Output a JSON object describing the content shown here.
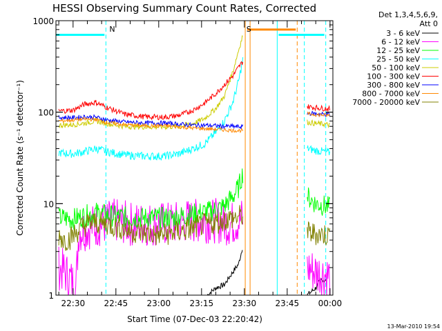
{
  "chart_data": {
    "type": "line",
    "title": "HESSI Observing Summary Count Rates, Corrected",
    "xlabel": "Start Time (07-Dec-03 22:20:42)",
    "ylabel": "Corrected Count Rate (s⁻¹ detector⁻¹)",
    "y_scale": "log",
    "ylim": [
      1,
      1000
    ],
    "y_ticks": [
      {
        "value": 1,
        "label": "1"
      },
      {
        "value": 10,
        "label": "10"
      },
      {
        "value": 100,
        "label": "100"
      },
      {
        "value": 1000,
        "label": "1000"
      }
    ],
    "xlim_minutes_after_2220": [
      4,
      101
    ],
    "x_ticks": [
      {
        "minute": 10,
        "label": "22:30"
      },
      {
        "minute": 25,
        "label": "22:45"
      },
      {
        "minute": 40,
        "label": "23:00"
      },
      {
        "minute": 55,
        "label": "23:15"
      },
      {
        "minute": 70,
        "label": "23:30"
      },
      {
        "minute": 85,
        "label": "23:45"
      },
      {
        "minute": 100,
        "label": "00:00"
      }
    ],
    "legend_header": [
      "Det 1,3,4,5,6,9,",
      "Att 0"
    ],
    "legend_placement": "right",
    "series": [
      {
        "name": "3 - 6 keV",
        "color": "#000000",
        "segments": [
          [
            [
              57,
              1
            ],
            [
              60,
              1.2
            ],
            [
              63,
              1.3
            ],
            [
              66,
              1.8
            ],
            [
              68,
              2.2
            ],
            [
              69.5,
              3.5
            ]
          ],
          [
            [
              92,
              1
            ],
            [
              95,
              1.2
            ],
            [
              97,
              1.5
            ],
            [
              99,
              1.4
            ]
          ]
        ]
      },
      {
        "name": "6 - 12 keV",
        "color": "#ff00ff",
        "segments": [
          [
            [
              5,
              2
            ],
            [
              7,
              1.8
            ],
            [
              9,
              1.5
            ],
            [
              11,
              1.2
            ],
            [
              12,
              5
            ],
            [
              15,
              5.5
            ],
            [
              20,
              6
            ],
            [
              25,
              6.5
            ],
            [
              30,
              6
            ],
            [
              35,
              6
            ],
            [
              40,
              6
            ],
            [
              45,
              6
            ],
            [
              50,
              6.5
            ],
            [
              55,
              6.5
            ],
            [
              60,
              6.5
            ],
            [
              65,
              6
            ],
            [
              68,
              6.5
            ],
            [
              69.5,
              7
            ]
          ],
          [
            [
              92,
              2
            ],
            [
              95,
              1.8
            ],
            [
              98,
              1.7
            ],
            [
              100,
              1.6
            ]
          ]
        ]
      },
      {
        "name": "12 - 25 keV",
        "color": "#00ff00",
        "segments": [
          [
            [
              5,
              7
            ],
            [
              10,
              6.8
            ],
            [
              15,
              7.5
            ],
            [
              18,
              8
            ],
            [
              22,
              7.5
            ],
            [
              30,
              7
            ],
            [
              40,
              7
            ],
            [
              45,
              7
            ],
            [
              50,
              7.5
            ],
            [
              55,
              8
            ],
            [
              60,
              8.5
            ],
            [
              63,
              9.5
            ],
            [
              66,
              12
            ],
            [
              68,
              15
            ],
            [
              69.5,
              22
            ]
          ],
          [
            [
              92,
              12
            ],
            [
              95,
              10
            ],
            [
              98,
              9.5
            ],
            [
              100,
              9
            ]
          ]
        ]
      },
      {
        "name": "25 - 50 keV",
        "color": "#00ffff",
        "segments": [
          [
            [
              5,
              36
            ],
            [
              10,
              35
            ],
            [
              14,
              37
            ],
            [
              18,
              40
            ],
            [
              22,
              37
            ],
            [
              28,
              34
            ],
            [
              35,
              33
            ],
            [
              42,
              33
            ],
            [
              47,
              35
            ],
            [
              52,
              40
            ],
            [
              56,
              45
            ],
            [
              60,
              60
            ],
            [
              63,
              80
            ],
            [
              66,
              130
            ],
            [
              68,
              220
            ],
            [
              69.5,
              380
            ]
          ],
          [
            [
              92,
              40
            ],
            [
              95,
              38
            ],
            [
              98,
              37
            ],
            [
              100,
              36
            ]
          ]
        ]
      },
      {
        "name": "50 - 100 keV",
        "color": "#cccc00",
        "segments": [
          [
            [
              5,
              72
            ],
            [
              10,
              73
            ],
            [
              14,
              76
            ],
            [
              18,
              80
            ],
            [
              22,
              75
            ],
            [
              28,
              70
            ],
            [
              35,
              69
            ],
            [
              42,
              69
            ],
            [
              47,
              70
            ],
            [
              52,
              75
            ],
            [
              56,
              85
            ],
            [
              60,
              110
            ],
            [
              63,
              150
            ],
            [
              66,
              280
            ],
            [
              68,
              480
            ],
            [
              69.5,
              700
            ]
          ],
          [
            [
              92,
              78
            ],
            [
              95,
              75
            ],
            [
              98,
              74
            ],
            [
              100,
              72
            ]
          ]
        ]
      },
      {
        "name": "100 - 300 keV",
        "color": "#ff0000",
        "segments": [
          [
            [
              5,
              103
            ],
            [
              10,
              105
            ],
            [
              14,
              122
            ],
            [
              18,
              128
            ],
            [
              22,
              112
            ],
            [
              28,
              95
            ],
            [
              35,
              89
            ],
            [
              42,
              88
            ],
            [
              47,
              92
            ],
            [
              52,
              105
            ],
            [
              56,
              125
            ],
            [
              60,
              160
            ],
            [
              63,
              200
            ],
            [
              66,
              250
            ],
            [
              68,
              310
            ],
            [
              69.5,
              360
            ]
          ],
          [
            [
              92,
              115
            ],
            [
              95,
              112
            ],
            [
              98,
              110
            ],
            [
              100,
              108
            ]
          ]
        ]
      },
      {
        "name": "300 - 800 keV",
        "color": "#0000ff",
        "segments": [
          [
            [
              5,
              88
            ],
            [
              10,
              87
            ],
            [
              14,
              89
            ],
            [
              18,
              88
            ],
            [
              22,
              82
            ],
            [
              28,
              78
            ],
            [
              35,
              76
            ],
            [
              42,
              76
            ],
            [
              47,
              74
            ],
            [
              52,
              72
            ],
            [
              56,
              72
            ],
            [
              60,
              71
            ],
            [
              63,
              70
            ],
            [
              66,
              70
            ],
            [
              68,
              69
            ],
            [
              69.5,
              69
            ]
          ],
          [
            [
              92,
              98
            ],
            [
              95,
              96
            ],
            [
              98,
              95
            ],
            [
              100,
              94
            ]
          ]
        ]
      },
      {
        "name": "800 - 7000 keV",
        "color": "#ff8800",
        "segments": [
          [
            [
              5,
              80
            ],
            [
              10,
              82
            ],
            [
              14,
              84
            ],
            [
              18,
              83
            ],
            [
              22,
              77
            ],
            [
              28,
              73
            ],
            [
              35,
              71
            ],
            [
              42,
              71
            ],
            [
              47,
              69
            ],
            [
              52,
              67
            ],
            [
              56,
              66
            ],
            [
              60,
              65
            ],
            [
              63,
              64
            ],
            [
              66,
              63
            ],
            [
              68,
              63
            ],
            [
              69.5,
              63
            ]
          ],
          [
            [
              92,
              96
            ],
            [
              95,
              94
            ],
            [
              98,
              93
            ],
            [
              100,
              92
            ]
          ]
        ]
      },
      {
        "name": "7000 - 20000 keV",
        "color": "#808000",
        "segments": [
          [
            [
              5,
              4.5
            ],
            [
              7,
              4
            ],
            [
              9,
              4.2
            ],
            [
              11,
              4.8
            ],
            [
              13,
              5.5
            ],
            [
              15,
              6
            ],
            [
              18,
              6.2
            ],
            [
              22,
              6
            ],
            [
              26,
              5.5
            ],
            [
              30,
              5
            ],
            [
              35,
              4.8
            ],
            [
              40,
              4.5
            ],
            [
              45,
              4.8
            ],
            [
              50,
              5.2
            ],
            [
              55,
              5.8
            ],
            [
              60,
              6.2
            ],
            [
              64,
              6.8
            ],
            [
              67,
              7
            ],
            [
              69.5,
              7.5
            ]
          ],
          [
            [
              92,
              4.8
            ],
            [
              95,
              4.7
            ],
            [
              98,
              4.6
            ],
            [
              100,
              4.5
            ]
          ]
        ]
      }
    ],
    "annotations": [
      {
        "text": "N",
        "minute": 21.5,
        "color": "#00ffff"
      },
      {
        "text": "S",
        "minute": 69.5,
        "color": "#ff8800"
      }
    ],
    "flag_bars": [
      {
        "color": "#00ffff",
        "from_minute": 4,
        "to_minute": 21,
        "value": 700
      },
      {
        "color": "#00ffff",
        "from_minute": 82,
        "to_minute": 98,
        "value": 700
      },
      {
        "color": "#ff8800",
        "from_minute": 71,
        "to_minute": 88,
        "value": 800
      }
    ],
    "vertical_lines": [
      {
        "minute": 21.5,
        "color": "#00ffff",
        "style": "dashed"
      },
      {
        "minute": 70.3,
        "color": "#ff8800",
        "style": "solid"
      },
      {
        "minute": 72,
        "color": "#ff8800",
        "style": "solid"
      },
      {
        "minute": 81.5,
        "color": "#00ffff",
        "style": "solid"
      },
      {
        "minute": 88.5,
        "color": "#ff8800",
        "style": "dashed"
      },
      {
        "minute": 91,
        "color": "#00ffff",
        "style": "dashed"
      },
      {
        "minute": 98.5,
        "color": "#00ffff",
        "style": "dashed"
      }
    ],
    "grid": false
  },
  "footer_timestamp": "13-Mar-2010 19:54"
}
